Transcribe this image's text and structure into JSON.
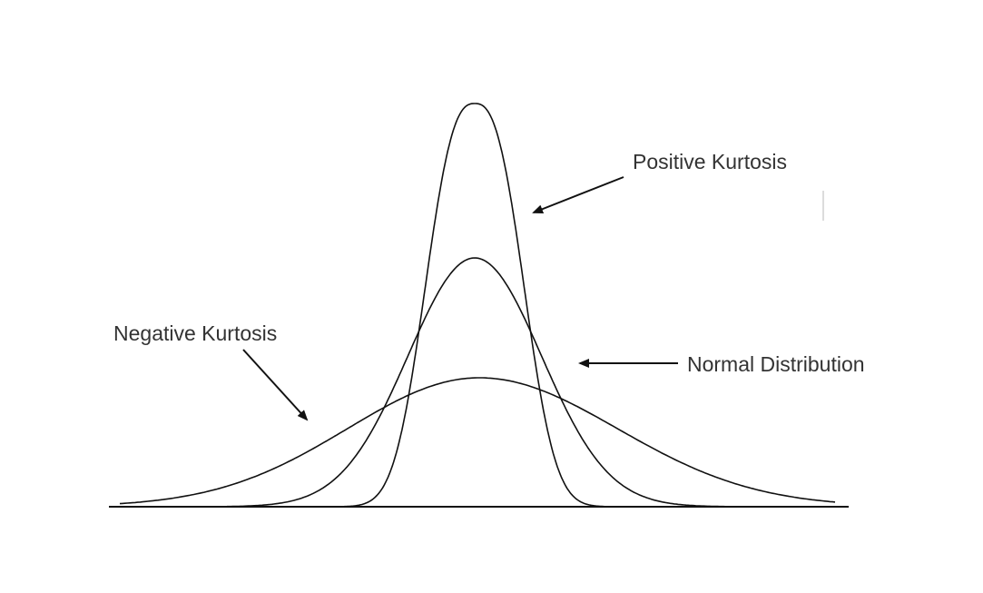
{
  "labels": {
    "positive_kurtosis": "Positive Kurtosis",
    "negative_kurtosis": "Negative Kurtosis",
    "normal_distribution": "Normal Distribution"
  },
  "colors": {
    "line": "#111111",
    "text": "#333333",
    "background": "#ffffff"
  }
}
